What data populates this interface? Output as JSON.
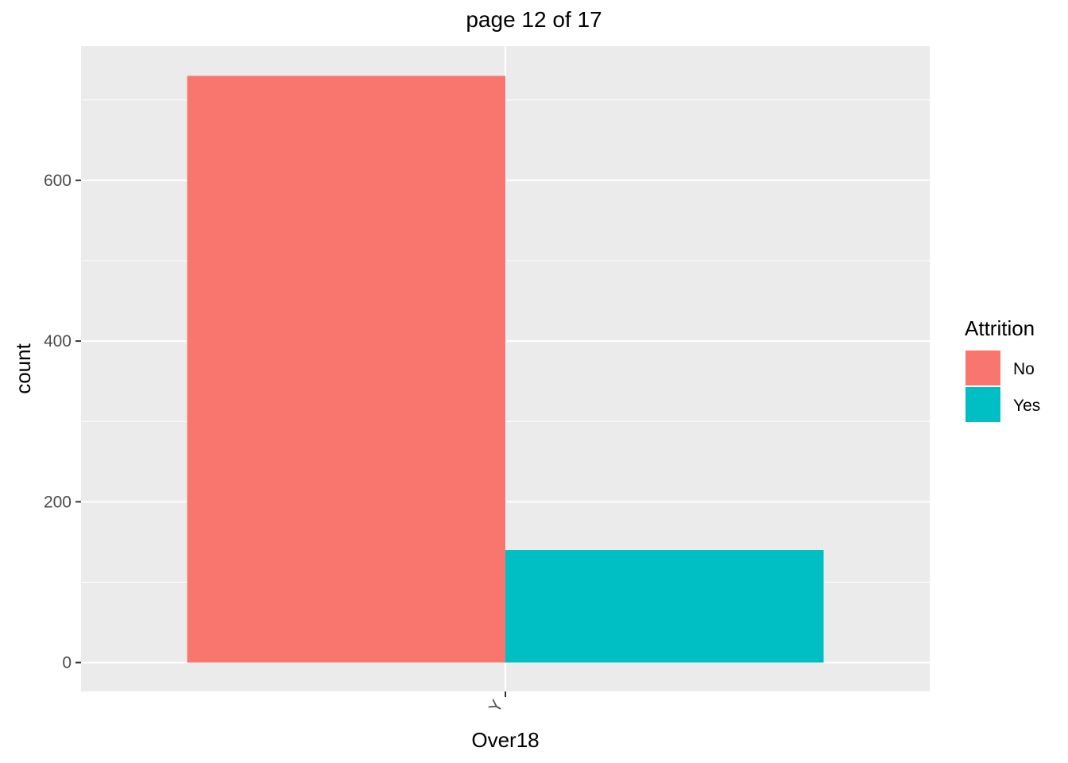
{
  "chart_data": {
    "type": "bar",
    "title": "page 12 of 17",
    "xlabel": "Over18",
    "ylabel": "count",
    "categories": [
      "Y"
    ],
    "series": [
      {
        "name": "No",
        "values": [
          730
        ],
        "color": "#F8766D"
      },
      {
        "name": "Yes",
        "values": [
          140
        ],
        "color": "#00BFC4"
      }
    ],
    "ylim": [
      -36,
      767
    ],
    "yticks": [
      0,
      200,
      400,
      600
    ],
    "grid": true,
    "panel_background": "#EBEBEB",
    "legend": {
      "title": "Attrition",
      "placement": "right"
    }
  }
}
